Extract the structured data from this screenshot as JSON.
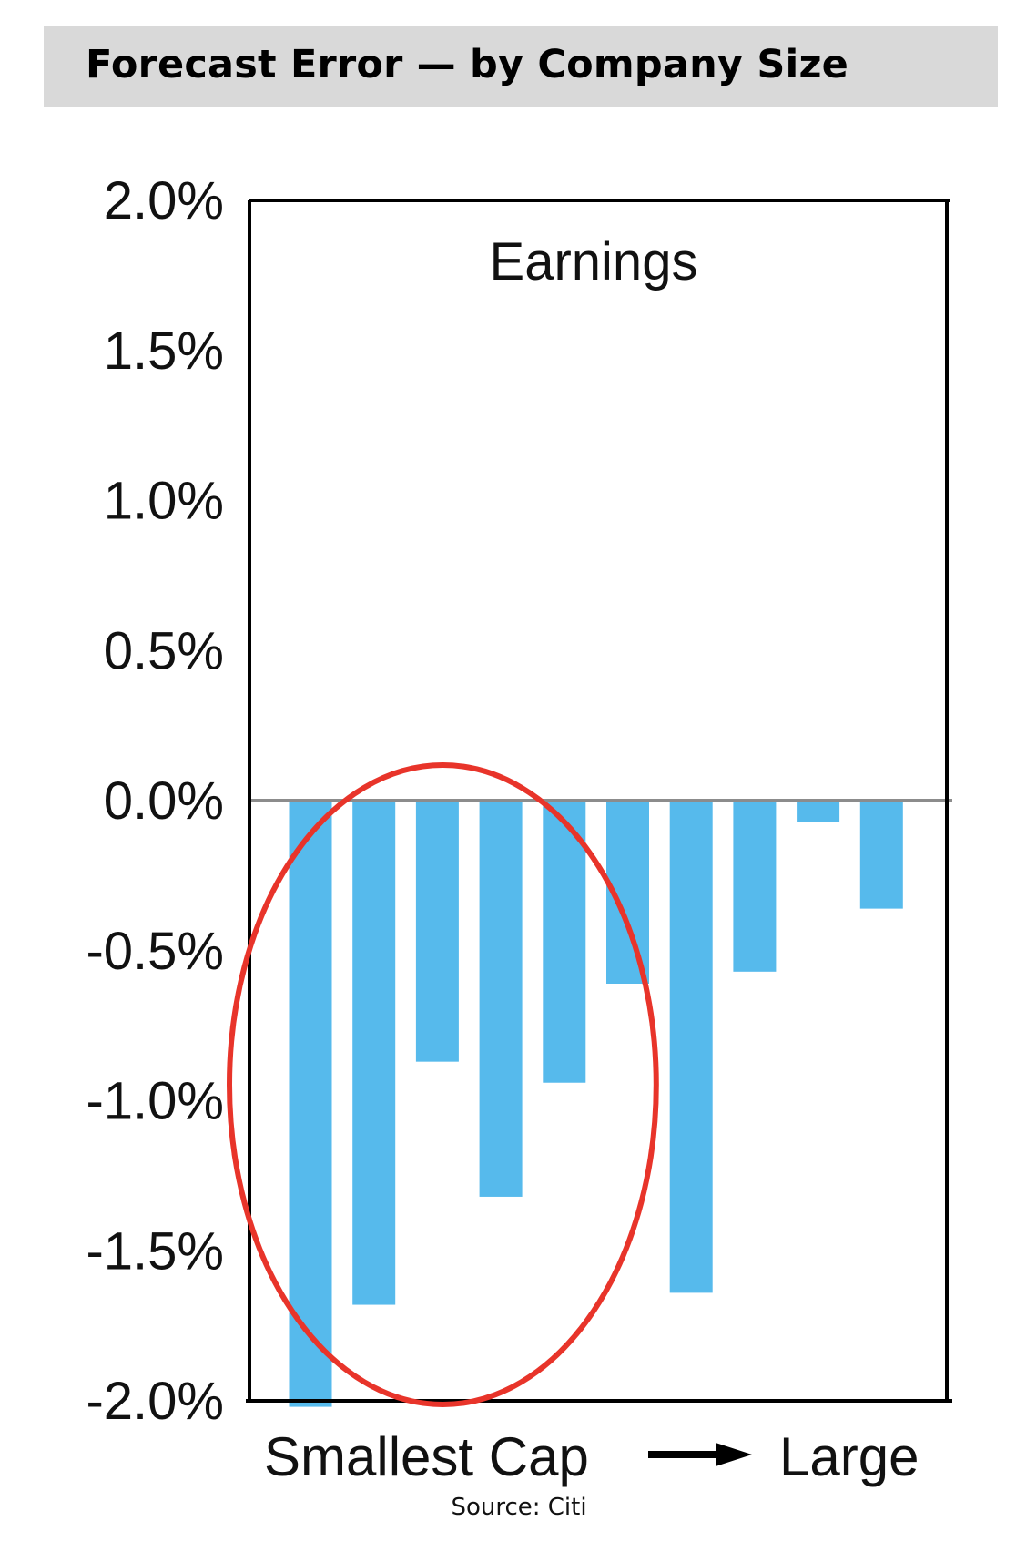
{
  "header": {
    "title": "Forecast Error — by Company Size"
  },
  "footer": {
    "source": "Source: Citi"
  },
  "colors": {
    "bar": "#56BAEC",
    "ellipse": "#E8342A",
    "zero_line": "#8C8C8C",
    "frame": "#000000"
  },
  "chart_data": {
    "type": "bar",
    "panel_label": "Earnings",
    "x_caption_left": "Smallest Cap",
    "x_caption_right": "Large",
    "x_caption_arrow": "right-arrow-icon",
    "ylim": [
      -2.0,
      2.0
    ],
    "y_ticks": [
      2.0,
      1.5,
      1.0,
      0.5,
      0.0,
      -0.5,
      -1.0,
      -1.5,
      -2.0
    ],
    "y_tick_labels": [
      "2.0%",
      "1.5%",
      "1.0%",
      "0.5%",
      "0.0%",
      "-0.5%",
      "-1.0%",
      "-1.5%",
      "-2.0%"
    ],
    "y_unit": "%",
    "values": [
      -2.02,
      -1.68,
      -0.87,
      -1.32,
      -0.94,
      -0.61,
      -1.64,
      -0.57,
      -0.07,
      -0.36
    ],
    "grid": false,
    "highlight": {
      "shape": "ellipse",
      "covers_bars": [
        1,
        2,
        3,
        4,
        5
      ]
    }
  }
}
